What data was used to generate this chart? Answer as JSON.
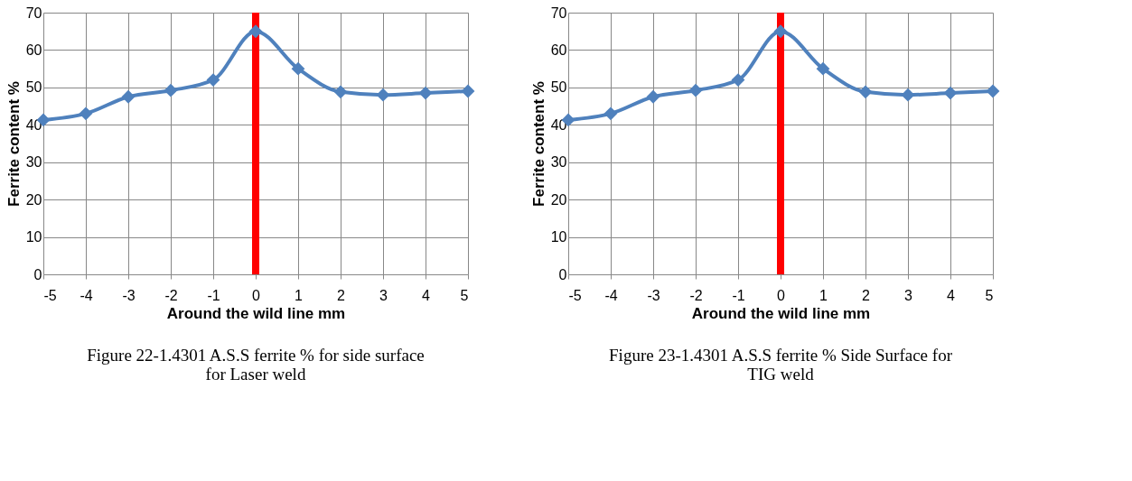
{
  "chart_data": [
    {
      "type": "line",
      "xlabel": "Around the wild line  mm",
      "ylabel": "Ferrite content %",
      "x": [
        -5,
        -4,
        -3,
        -2,
        -1,
        0,
        1,
        2,
        3,
        4,
        5
      ],
      "series": [
        {
          "color": "#4f81bd",
          "values": [
            41.3,
            43,
            47.5,
            49.2,
            52,
            65,
            55,
            48.8,
            48,
            48.5,
            49
          ]
        }
      ],
      "xlim": [
        -5,
        5
      ],
      "xticks": [
        -5,
        -4,
        -3,
        -2,
        -1,
        0,
        1,
        2,
        3,
        4,
        5
      ],
      "ylim": [
        0,
        70
      ],
      "yticks": [
        0,
        10,
        20,
        30,
        40,
        50,
        60,
        70
      ],
      "grid": true,
      "marker": "diamond",
      "line_style": "solid",
      "ref_lines": [
        {
          "axis": "x",
          "value": 0,
          "color": "#ff0000"
        }
      ],
      "annotations": [
        "Figure 22-1.4301 A.S.S ferrite % for side surface for Laser weld"
      ]
    },
    {
      "type": "line",
      "xlabel": "Around the wild line  mm",
      "ylabel": "Ferrite content %",
      "x": [
        -5,
        -4,
        -3,
        -2,
        -1,
        0,
        1,
        2,
        3,
        4,
        5
      ],
      "series": [
        {
          "color": "#4f81bd",
          "values": [
            41.3,
            43,
            47.5,
            49.2,
            52,
            65,
            55,
            48.8,
            48,
            48.5,
            49
          ]
        }
      ],
      "xlim": [
        -5,
        5
      ],
      "xticks": [
        -5,
        -4,
        -3,
        -2,
        -1,
        0,
        1,
        2,
        3,
        4,
        5
      ],
      "ylim": [
        0,
        70
      ],
      "yticks": [
        0,
        10,
        20,
        30,
        40,
        50,
        60,
        70
      ],
      "grid": true,
      "marker": "diamond",
      "line_style": "solid",
      "ref_lines": [
        {
          "axis": "x",
          "value": 0,
          "color": "#ff0000"
        }
      ],
      "annotations": [
        "Figure 23-1.4301 A.S.S ferrite % Side Surface for TIG weld"
      ]
    }
  ]
}
